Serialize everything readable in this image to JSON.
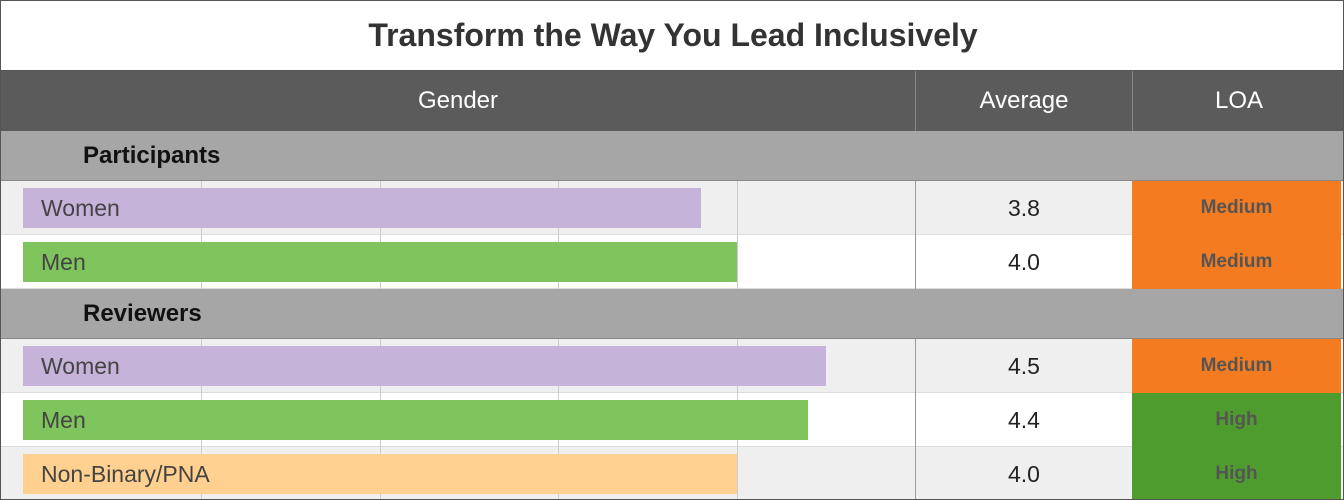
{
  "title": "Transform the Way You Lead Inclusively",
  "columns": [
    "Gender",
    "Average",
    "LOA"
  ],
  "xlim": [
    0,
    5
  ],
  "xticks": [
    1,
    2,
    3,
    4,
    5
  ],
  "groups": [
    {
      "name": "Participants",
      "rows": [
        {
          "label": "Women",
          "value": 3.8,
          "value_label": "3.8",
          "color": "#c6b3da",
          "loa": "Medium",
          "loa_color": "#f47b20"
        },
        {
          "label": "Men",
          "value": 4.0,
          "value_label": "4.0",
          "color": "#7fc45c",
          "loa": "Medium",
          "loa_color": "#f47b20"
        }
      ]
    },
    {
      "name": "Reviewers",
      "rows": [
        {
          "label": "Women",
          "value": 4.5,
          "value_label": "4.5",
          "color": "#c6b3da",
          "loa": "Medium",
          "loa_color": "#f47b20"
        },
        {
          "label": "Men",
          "value": 4.4,
          "value_label": "4.4",
          "color": "#7fc45c",
          "loa": "High",
          "loa_color": "#4e9c2e"
        },
        {
          "label": "Non-Binary/PNA",
          "value": 4.0,
          "value_label": "4.0",
          "color": "#ffd08f",
          "loa": "High",
          "loa_color": "#4e9c2e"
        }
      ]
    }
  ]
}
